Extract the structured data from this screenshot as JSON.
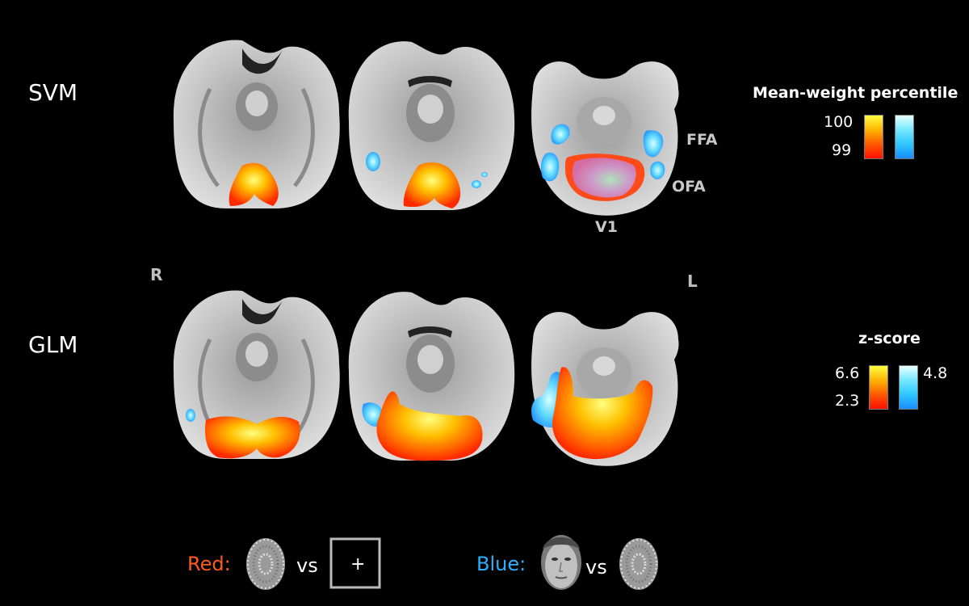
{
  "rows": {
    "svm_label": "SVM",
    "glm_label": "GLM"
  },
  "orientation": {
    "right": "R",
    "left": "L"
  },
  "rois": {
    "ffa": "FFA",
    "ofa": "OFA",
    "v1": "V1"
  },
  "legend_svm": {
    "title": "Mean-weight percentile",
    "max": "100",
    "min": "99"
  },
  "legend_glm": {
    "title": "z-score",
    "warm_max": "6.6",
    "warm_min": "2.3",
    "cool_max": "4.8"
  },
  "footer": {
    "red_label": "Red:",
    "blue_label": "Blue:",
    "vs": "vs",
    "fixation": "+",
    "red_color": "#ff5a1e",
    "blue_color": "#2ab0ff"
  },
  "colors": {
    "warm_map": "#ff5a00",
    "cool_map": "#2ab8ff",
    "brain_gray": "#bdbdbd"
  }
}
